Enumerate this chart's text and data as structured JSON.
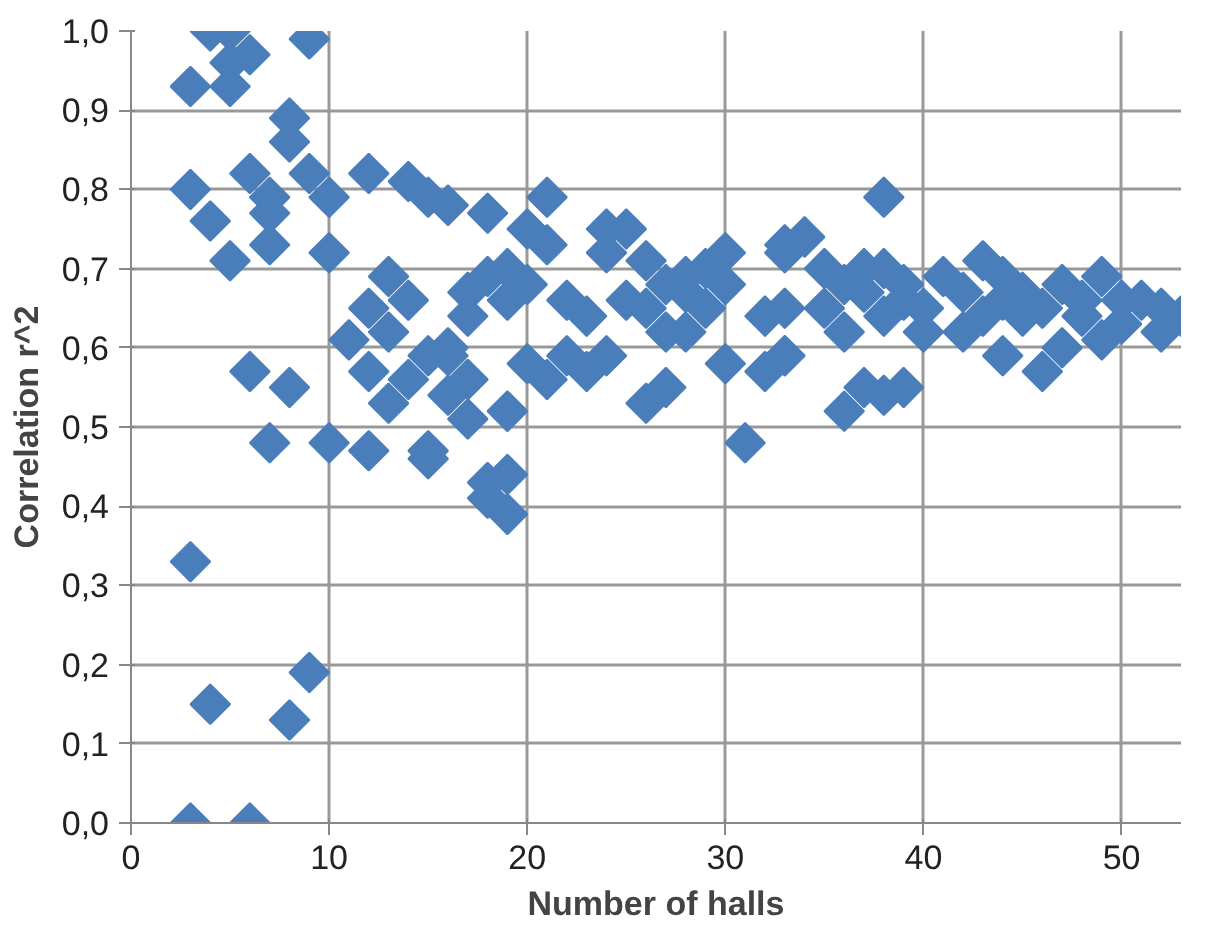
{
  "chart_data": {
    "type": "scatter",
    "xlabel": "Number of halls",
    "ylabel": "Correlation r^2",
    "xlim": [
      0,
      53
    ],
    "ylim": [
      0,
      1.0
    ],
    "xticks": [
      0,
      10,
      20,
      30,
      40,
      50
    ],
    "yticks": [
      {
        "value": 0,
        "label": "0,0"
      },
      {
        "value": 0.1,
        "label": "0,1"
      },
      {
        "value": 0.2,
        "label": "0,2"
      },
      {
        "value": 0.3,
        "label": "0,3"
      },
      {
        "value": 0.4,
        "label": "0,4"
      },
      {
        "value": 0.5,
        "label": "0,5"
      },
      {
        "value": 0.6,
        "label": "0,6"
      },
      {
        "value": 0.7,
        "label": "0,7"
      },
      {
        "value": 0.8,
        "label": "0,8"
      },
      {
        "value": 0.9,
        "label": "0,9"
      },
      {
        "value": 1.0,
        "label": "1,0"
      }
    ],
    "grid": true,
    "marker": "diamond",
    "series": [
      {
        "color": "#4a7ebb",
        "x": [
          3,
          6,
          3,
          4,
          8,
          9,
          4,
          5,
          6,
          5,
          3,
          5,
          9,
          8,
          8,
          3,
          6,
          7,
          7,
          9,
          10,
          12,
          14,
          15,
          16,
          4,
          5,
          7,
          10,
          13,
          14,
          12,
          13,
          11,
          17,
          6,
          8,
          12,
          13,
          14,
          15,
          16,
          7,
          10,
          12,
          15,
          15,
          18,
          19,
          19,
          19,
          17,
          16,
          17,
          18,
          19,
          16,
          18,
          21,
          20,
          21,
          20,
          19,
          22,
          23,
          24,
          25,
          24,
          26,
          27,
          28,
          29,
          30,
          33,
          34,
          16,
          17,
          17,
          19,
          18,
          19,
          20,
          21,
          22,
          24,
          23,
          26,
          27,
          27,
          28,
          30,
          31,
          32,
          33,
          32,
          29,
          25,
          26,
          30,
          28,
          38,
          34,
          33,
          35,
          37,
          38,
          39,
          41,
          43,
          44,
          45,
          47,
          49,
          51,
          53,
          33,
          36,
          38,
          40,
          42,
          44,
          46,
          47,
          49,
          52,
          36,
          37,
          38,
          39,
          33,
          37,
          40,
          43,
          45,
          48,
          50,
          52,
          50,
          48,
          46,
          44,
          42,
          39,
          35,
          36
        ],
        "values": [
          0,
          0,
          0.33,
          0.15,
          0.13,
          0.19,
          1.0,
          1.0,
          0.97,
          0.96,
          0.93,
          0.93,
          0.99,
          0.89,
          0.86,
          0.8,
          0.82,
          0.79,
          0.77,
          0.82,
          0.79,
          0.82,
          0.81,
          0.79,
          0.78,
          0.76,
          0.71,
          0.73,
          0.72,
          0.69,
          0.66,
          0.65,
          0.62,
          0.61,
          0.67,
          0.57,
          0.55,
          0.57,
          0.53,
          0.56,
          0.59,
          0.54,
          0.48,
          0.48,
          0.47,
          0.47,
          0.46,
          0.41,
          0.39,
          0.44,
          0.52,
          0.56,
          0.6,
          0.64,
          0.69,
          0.7,
          0.78,
          0.77,
          0.79,
          0.75,
          0.73,
          0.68,
          0.66,
          0.66,
          0.64,
          0.75,
          0.75,
          0.72,
          0.71,
          0.68,
          0.69,
          0.7,
          0.72,
          0.73,
          0.74,
          0.59,
          0.56,
          0.51,
          0.52,
          0.43,
          0.39,
          0.58,
          0.56,
          0.59,
          0.59,
          0.57,
          0.53,
          0.55,
          0.62,
          0.62,
          0.58,
          0.48,
          0.57,
          0.59,
          0.64,
          0.65,
          0.66,
          0.65,
          0.68,
          0.67,
          0.79,
          0.74,
          0.72,
          0.7,
          0.7,
          0.7,
          0.68,
          0.69,
          0.71,
          0.69,
          0.67,
          0.68,
          0.69,
          0.66,
          0.64,
          0.65,
          0.62,
          0.64,
          0.62,
          0.62,
          0.59,
          0.57,
          0.6,
          0.61,
          0.62,
          0.52,
          0.55,
          0.54,
          0.55,
          0.59,
          0.67,
          0.65,
          0.64,
          0.64,
          0.64,
          0.63,
          0.65,
          0.66,
          0.66,
          0.65,
          0.66,
          0.67,
          0.66,
          0.65,
          0.68
        ]
      }
    ]
  }
}
